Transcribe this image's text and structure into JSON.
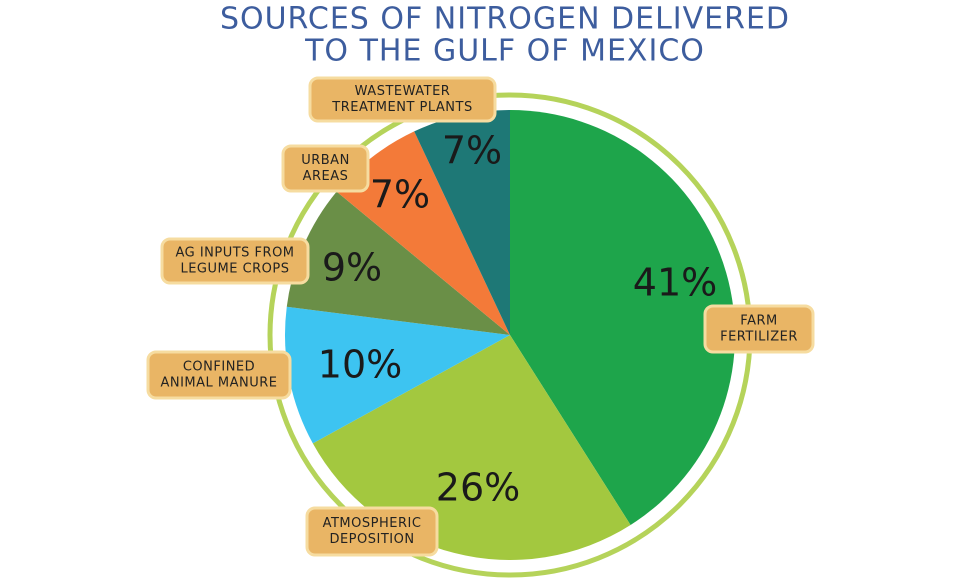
{
  "chart_data": {
    "type": "pie",
    "title": [
      "SOURCES OF NITROGEN DELIVERED",
      "TO THE GULF OF MEXICO"
    ],
    "categories": [
      [
        "FARM",
        "FERTILIZER"
      ],
      [
        "ATMOSPHERIC",
        "DEPOSITION"
      ],
      [
        "CONFINED",
        "ANIMAL MANURE"
      ],
      [
        "AG INPUTS FROM",
        "LEGUME CROPS"
      ],
      [
        "URBAN",
        "AREAS"
      ],
      [
        "WASTEWATER",
        "TREATMENT PLANTS"
      ]
    ],
    "values": [
      41,
      26,
      10,
      9,
      7,
      7
    ],
    "value_labels": [
      "41%",
      "26%",
      "10%",
      "9%",
      "7%",
      "7%"
    ],
    "colors": [
      "#1ea54b",
      "#a3c83f",
      "#3dc4f1",
      "#6a8f47",
      "#f37a39",
      "#1e7876"
    ]
  }
}
